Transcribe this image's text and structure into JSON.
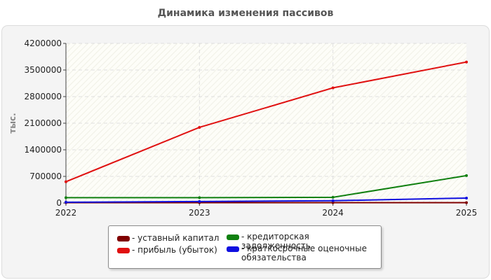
{
  "chart_data": {
    "type": "line",
    "title": "Динамика изменения пассивов",
    "ylabel": "тыс.",
    "xlabel": "",
    "x": [
      "2022",
      "2023",
      "2024",
      "2025"
    ],
    "ylim": [
      0,
      4200000
    ],
    "yticks": [
      "0",
      "700000",
      "1400000",
      "2100000",
      "2800000",
      "3500000",
      "4200000"
    ],
    "grid": true,
    "legend_position": "bottom",
    "series": [
      {
        "name": "- уставный капитал",
        "color": "#800000",
        "values": [
          10000,
          10000,
          10000,
          10000
        ]
      },
      {
        "name": "- прибыль (убыток)",
        "color": "#e01010",
        "values": [
          560000,
          1990000,
          3030000,
          3710000
        ]
      },
      {
        "name": "- кредиторская задолженность",
        "color": "#108010",
        "values": [
          140000,
          140000,
          150000,
          720000
        ]
      },
      {
        "name": "- краткосрочные оценочные\nобязательства",
        "color": "#1010e0",
        "values": [
          20000,
          40000,
          60000,
          130000
        ]
      }
    ]
  }
}
